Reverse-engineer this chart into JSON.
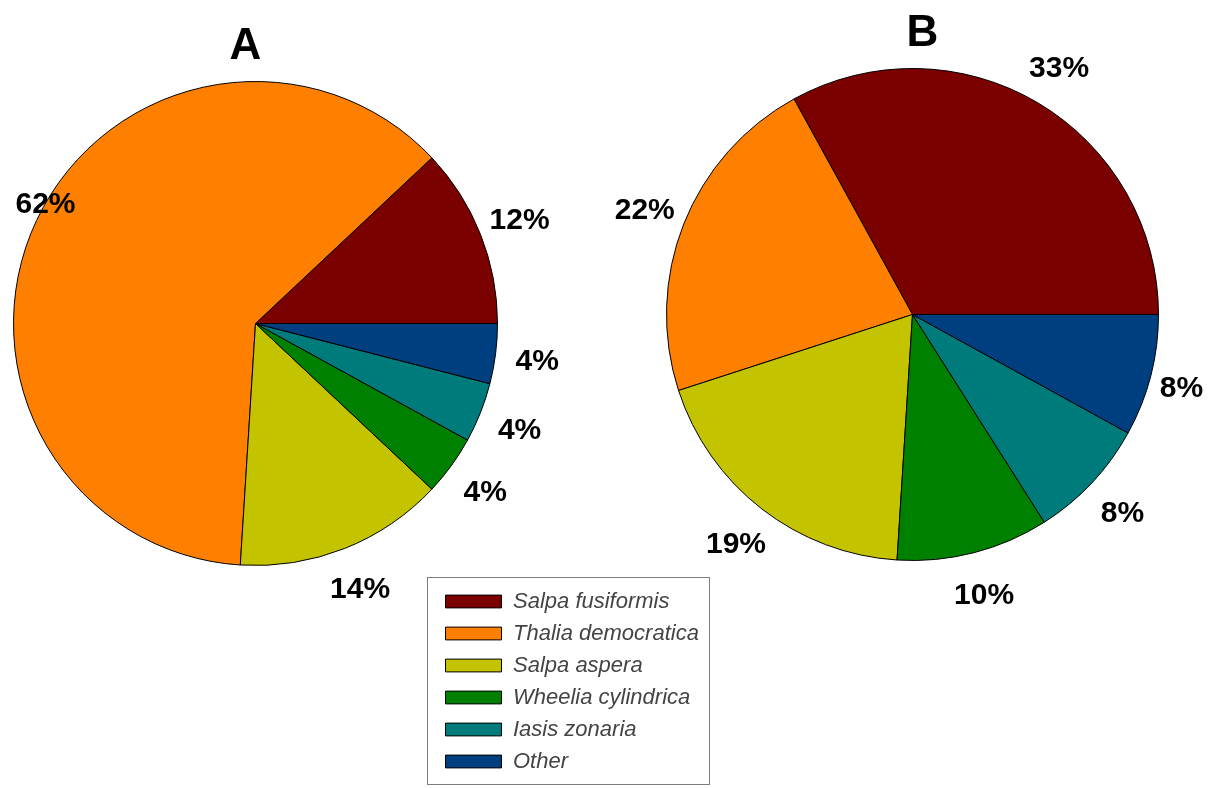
{
  "chart_data": [
    {
      "type": "pie",
      "title": "A",
      "categories": [
        "Salpa fusiformis",
        "Thalia democratica",
        "Salpa aspera",
        "Wheelia cylindrica",
        "Iasis zonaria",
        "Other"
      ],
      "values": [
        12,
        62,
        14,
        4,
        4,
        4
      ],
      "value_labels": [
        "12%",
        "62%",
        "14%",
        "4%",
        "4%",
        "4%"
      ],
      "colors": [
        "#7b0000",
        "#ff8000",
        "#c3c300",
        "#008000",
        "#007b7b",
        "#003f7f"
      ],
      "legend": "bottom"
    },
    {
      "type": "pie",
      "title": "B",
      "categories": [
        null,
        null,
        null,
        null,
        null,
        null
      ],
      "values": [
        33,
        22,
        19,
        10,
        8,
        8
      ],
      "value_labels": [
        "33%",
        "22%",
        "19%",
        "10%",
        "8%",
        "8%"
      ],
      "colors": [
        "#7b0000",
        "#ff8000",
        "#c3c300",
        "#008000",
        "#007b7b",
        "#003f7f"
      ]
    }
  ]
}
